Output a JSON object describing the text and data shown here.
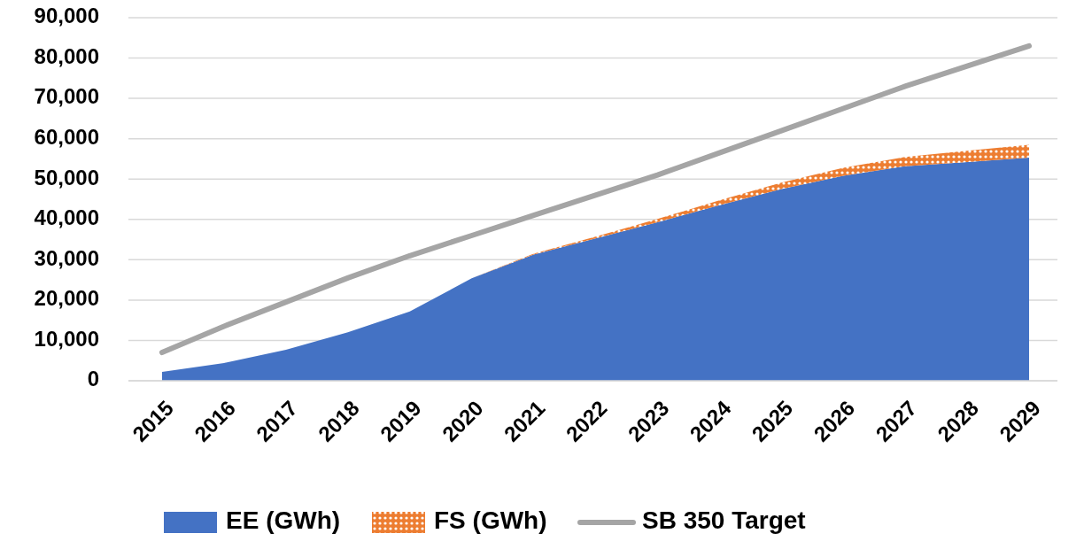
{
  "chart_data": {
    "type": "area",
    "stacked": true,
    "categories": [
      "2015",
      "2016",
      "2017",
      "2018",
      "2019",
      "2020",
      "2021",
      "2022",
      "2023",
      "2024",
      "2025",
      "2026",
      "2027",
      "2028",
      "2029"
    ],
    "series": [
      {
        "name": "EE (GWh)",
        "color": "#4472c4",
        "values": [
          2200,
          4400,
          7700,
          12000,
          17200,
          25400,
          31300,
          35300,
          39300,
          43500,
          47500,
          50800,
          53200,
          54200,
          55300
        ]
      },
      {
        "name": "FS (GWh)",
        "color": "#ed7d31",
        "values": [
          0,
          0,
          0,
          0,
          0,
          0,
          200,
          400,
          800,
          1200,
          1600,
          2000,
          2300,
          2800,
          3200
        ]
      },
      {
        "name": "SB 350 Target",
        "type": "line",
        "color": "#a5a5a5",
        "values": [
          7000,
          13500,
          19500,
          25500,
          31000,
          36000,
          41000,
          46000,
          51000,
          56500,
          62000,
          67500,
          73000,
          78000,
          83000
        ]
      }
    ],
    "ylim": [
      0,
      90000
    ],
    "yticks": [
      {
        "value": 0,
        "label": "0"
      },
      {
        "value": 10000,
        "label": "10,000"
      },
      {
        "value": 20000,
        "label": "20,000"
      },
      {
        "value": 30000,
        "label": "30,000"
      },
      {
        "value": 40000,
        "label": "40,000"
      },
      {
        "value": 50000,
        "label": "50,000"
      },
      {
        "value": 60000,
        "label": "60,000"
      },
      {
        "value": 70000,
        "label": "70,000"
      },
      {
        "value": 80000,
        "label": "80,000"
      },
      {
        "value": 90000,
        "label": "90,000"
      }
    ],
    "grid": "y",
    "legend": "bottom"
  }
}
